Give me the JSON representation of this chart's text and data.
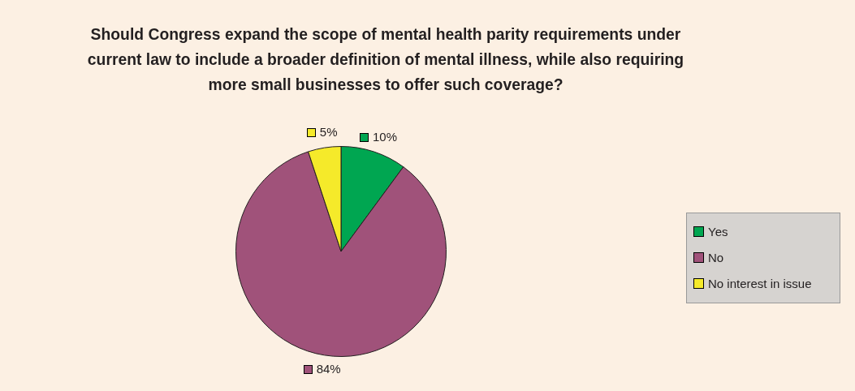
{
  "chart_data": {
    "type": "pie",
    "title": "Should Congress expand the scope of mental health parity requirements under current law to include a broader definition of mental illness, while also requiring more small businesses to offer such coverage?",
    "categories": [
      "Yes",
      "No",
      "No interest in issue"
    ],
    "values": [
      10,
      84,
      5
    ],
    "colors": [
      "#00a651",
      "#a0527a",
      "#f5ea2a"
    ],
    "value_labels": [
      "10%",
      "84%",
      "5%"
    ],
    "legend": "right"
  }
}
